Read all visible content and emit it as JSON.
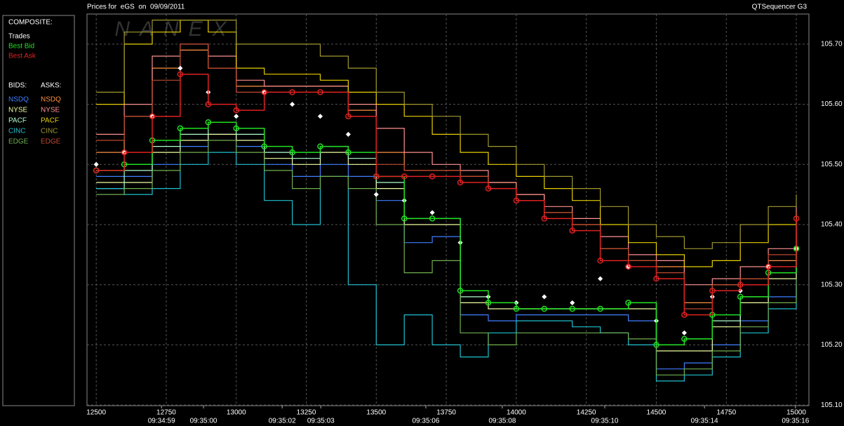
{
  "chart_data": {
    "type": "step",
    "title": "Prices for  eGS  on  09/09/2011",
    "app_label": "QTSequencer G3",
    "watermark": "NANEX",
    "composite_title": "COMPOSITE:",
    "bids_title": "BIDS:",
    "asks_title": "ASKS:",
    "xlim": [
      12467,
      15045
    ],
    "ylim": [
      105.099,
      105.75
    ],
    "grid": true,
    "xticks": [
      12500,
      12750,
      13000,
      13250,
      13500,
      13750,
      14000,
      14250,
      14500,
      14750,
      15000
    ],
    "time_ticks": [
      {
        "value": 12733,
        "label": "09:34:59"
      },
      {
        "value": 12883,
        "label": "09:35:00"
      },
      {
        "value": 13164,
        "label": "09:35:02"
      },
      {
        "value": 13302,
        "label": "09:35:03"
      },
      {
        "value": 13677,
        "label": "09:35:06"
      },
      {
        "value": 13950,
        "label": "09:35:08"
      },
      {
        "value": 14316,
        "label": "09:35:10"
      },
      {
        "value": 14672,
        "label": "09:35:14"
      },
      {
        "value": 14997,
        "label": "09:35:16"
      }
    ],
    "yticks": [
      {
        "value": 105.1,
        "label": "105.10"
      },
      {
        "value": 105.2,
        "label": "105.20"
      },
      {
        "value": 105.3,
        "label": "105.30"
      },
      {
        "value": 105.4,
        "label": "105.40"
      },
      {
        "value": 105.5,
        "label": "105.50"
      },
      {
        "value": 105.6,
        "label": "105.60"
      },
      {
        "value": 105.7,
        "label": "105.70"
      }
    ],
    "x": [
      12500,
      12600,
      12700,
      12800,
      12900,
      13000,
      13100,
      13200,
      13300,
      13400,
      13500,
      13600,
      13700,
      13800,
      13900,
      14000,
      14100,
      14200,
      14300,
      14400,
      14500,
      14600,
      14700,
      14800,
      14900,
      15000
    ],
    "bid_series": [
      {
        "name": "NSDQ",
        "color": "#3f7fff",
        "values": [
          105.48,
          105.48,
          105.5,
          105.53,
          105.55,
          105.53,
          105.5,
          105.48,
          105.5,
          105.48,
          105.44,
          105.37,
          105.38,
          105.25,
          105.24,
          105.25,
          105.25,
          105.25,
          105.25,
          105.24,
          105.16,
          105.17,
          105.2,
          105.24,
          105.28,
          105.33
        ]
      },
      {
        "name": "NYSE",
        "color": "#f0ffa0",
        "values": [
          105.47,
          105.47,
          105.52,
          105.54,
          105.55,
          105.54,
          105.51,
          105.5,
          105.52,
          105.5,
          105.46,
          105.4,
          105.4,
          105.27,
          105.26,
          105.26,
          105.26,
          105.26,
          105.26,
          105.26,
          105.19,
          105.19,
          105.23,
          105.27,
          105.31,
          105.34
        ]
      },
      {
        "name": "PACF",
        "color": "#b0ffd0",
        "values": [
          105.46,
          105.49,
          105.53,
          105.55,
          105.57,
          105.55,
          105.52,
          105.51,
          105.53,
          105.51,
          105.47,
          105.41,
          105.41,
          105.28,
          105.27,
          105.26,
          105.26,
          105.26,
          105.26,
          105.27,
          105.2,
          105.21,
          105.24,
          105.28,
          105.32,
          105.35
        ]
      },
      {
        "name": "CINC",
        "color": "#20c0d0",
        "values": [
          105.46,
          105.45,
          105.46,
          105.5,
          105.52,
          105.5,
          105.44,
          105.4,
          105.48,
          105.3,
          105.2,
          105.25,
          105.2,
          105.18,
          105.22,
          105.24,
          105.24,
          105.23,
          105.22,
          105.2,
          105.14,
          105.15,
          105.18,
          105.22,
          105.26,
          105.3
        ]
      },
      {
        "name": "EDGE",
        "color": "#70b050",
        "values": [
          105.45,
          105.46,
          105.49,
          105.52,
          105.54,
          105.52,
          105.49,
          105.46,
          105.48,
          105.46,
          105.4,
          105.32,
          105.34,
          105.22,
          105.2,
          105.22,
          105.22,
          105.22,
          105.22,
          105.21,
          105.15,
          105.16,
          105.19,
          105.23,
          105.27,
          105.31
        ]
      }
    ],
    "ask_series": [
      {
        "name": "NSDQ",
        "color": "#ff9040",
        "values": [
          105.52,
          105.58,
          105.66,
          105.69,
          105.66,
          105.63,
          105.63,
          105.63,
          105.63,
          105.59,
          105.52,
          105.49,
          105.49,
          105.48,
          105.47,
          105.45,
          105.42,
          105.4,
          105.36,
          105.34,
          105.33,
          105.27,
          105.3,
          105.31,
          105.34,
          105.42
        ]
      },
      {
        "name": "NYSE",
        "color": "#ff9090",
        "values": [
          105.55,
          105.6,
          105.68,
          105.7,
          105.68,
          105.64,
          105.63,
          105.63,
          105.63,
          105.6,
          105.56,
          105.52,
          105.5,
          105.49,
          105.47,
          105.45,
          105.43,
          105.41,
          105.38,
          105.35,
          105.34,
          105.3,
          105.31,
          105.33,
          105.36,
          105.43
        ]
      },
      {
        "name": "PACF",
        "color": "#e8d000",
        "values": [
          105.6,
          105.7,
          105.72,
          105.74,
          105.72,
          105.66,
          105.65,
          105.65,
          105.64,
          105.62,
          105.6,
          105.58,
          105.55,
          105.52,
          105.5,
          105.48,
          105.46,
          105.44,
          105.4,
          105.37,
          105.35,
          105.33,
          105.34,
          105.37,
          105.4,
          105.42
        ]
      },
      {
        "name": "CINC",
        "color": "#a09830",
        "values": [
          105.62,
          105.72,
          105.74,
          105.74,
          105.74,
          105.7,
          105.7,
          105.7,
          105.68,
          105.66,
          105.62,
          105.6,
          105.58,
          105.55,
          105.53,
          105.5,
          105.48,
          105.46,
          105.43,
          105.4,
          105.38,
          105.36,
          105.37,
          105.4,
          105.43,
          105.45
        ]
      },
      {
        "name": "EDGE",
        "color": "#c04830",
        "values": [
          105.54,
          105.58,
          105.64,
          105.7,
          105.66,
          105.62,
          105.62,
          105.62,
          105.62,
          105.58,
          105.5,
          105.49,
          105.49,
          105.48,
          105.46,
          105.44,
          105.42,
          105.4,
          105.36,
          105.34,
          105.32,
          105.26,
          105.3,
          105.31,
          105.35,
          105.42
        ]
      }
    ],
    "composite_series": [
      {
        "name": "Trades",
        "color": "#ffffff",
        "values": [
          105.5,
          105.52,
          105.58,
          105.66,
          105.62,
          105.58,
          105.62,
          105.6,
          105.58,
          105.55,
          105.45,
          105.44,
          105.42,
          105.37,
          105.28,
          105.27,
          105.28,
          105.27,
          105.31,
          105.33,
          105.24,
          105.22,
          105.28,
          105.29,
          105.33,
          105.36
        ]
      },
      {
        "name": "Best Bid",
        "color": "#20e020",
        "values": [
          105.49,
          105.5,
          105.54,
          105.56,
          105.57,
          105.56,
          105.53,
          105.52,
          105.53,
          105.52,
          105.48,
          105.41,
          105.41,
          105.29,
          105.27,
          105.26,
          105.26,
          105.26,
          105.26,
          105.27,
          105.2,
          105.21,
          105.25,
          105.28,
          105.32,
          105.36
        ]
      },
      {
        "name": "Best Ask",
        "color": "#e02020",
        "values": [
          105.49,
          105.52,
          105.58,
          105.65,
          105.6,
          105.59,
          105.62,
          105.62,
          105.62,
          105.58,
          105.48,
          105.48,
          105.48,
          105.47,
          105.46,
          105.44,
          105.41,
          105.39,
          105.34,
          105.33,
          105.31,
          105.25,
          105.29,
          105.3,
          105.33,
          105.41
        ]
      }
    ]
  }
}
